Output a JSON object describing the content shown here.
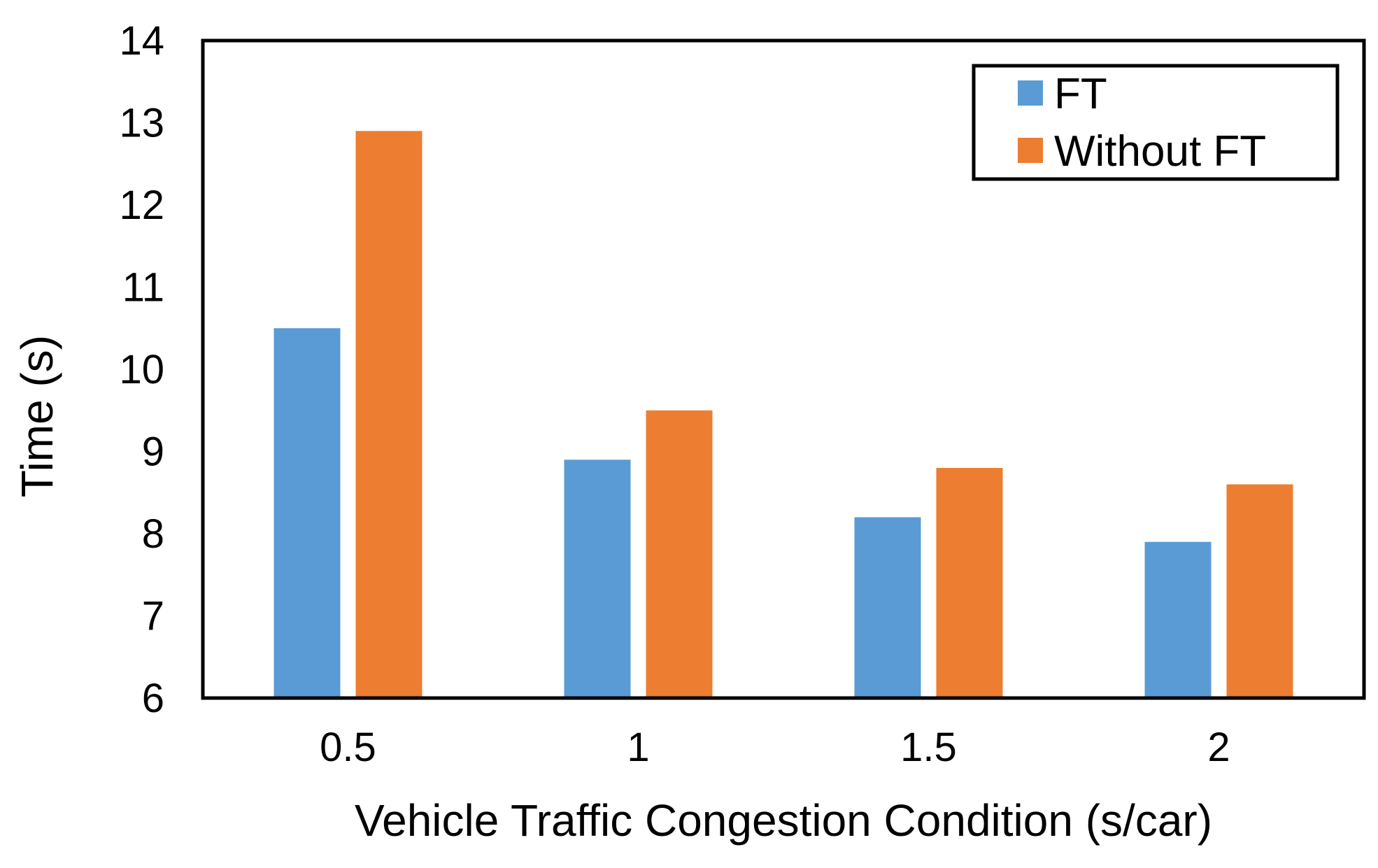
{
  "chart_data": {
    "type": "bar",
    "title": "",
    "xlabel": "Vehicle Traffic Congestion Condition (s/car)",
    "ylabel": "Time (s)",
    "categories": [
      "0.5",
      "1",
      "1.5",
      "2"
    ],
    "series": [
      {
        "name": "FT",
        "color": "#5B9BD5",
        "values": [
          10.5,
          8.9,
          8.2,
          7.9
        ]
      },
      {
        "name": "Without FT",
        "color": "#ED7D31",
        "values": [
          12.9,
          9.5,
          8.8,
          8.6
        ]
      }
    ],
    "ylim": [
      6,
      14
    ],
    "yticks": [
      "6",
      "7",
      "8",
      "9",
      "10",
      "11",
      "12",
      "13",
      "14"
    ],
    "grid": false,
    "legend_position": "top-right"
  }
}
